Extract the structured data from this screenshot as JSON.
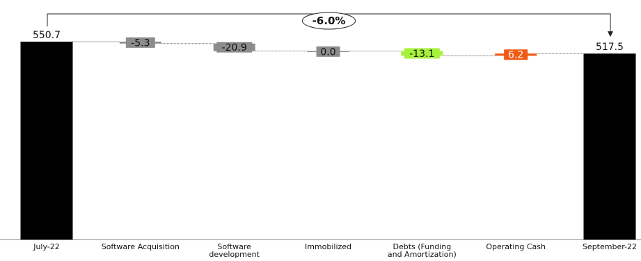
{
  "chart_data": {
    "type": "waterfall",
    "title": "",
    "xlabel": "",
    "ylabel": "",
    "categories": [
      "July-22",
      "Software Acquisition",
      "Software development",
      "Immobilized",
      "Debts (Funding and Amortization)",
      "Operating Cash",
      "September-22"
    ],
    "category_lines": [
      [
        "July-22"
      ],
      [
        "Software Acquisition"
      ],
      [
        "Software",
        "development"
      ],
      [
        "Immobilized"
      ],
      [
        "Debts (Funding",
        "and Amortization)"
      ],
      [
        "Operating Cash"
      ],
      [
        "September-22"
      ]
    ],
    "values": [
      550.7,
      -5.3,
      -20.9,
      0.0,
      -13.1,
      6.2,
      517.5
    ],
    "value_labels": [
      "550.7",
      "-5.3",
      "-20.9",
      "0.0",
      "-13.1",
      "6.2",
      "517.5"
    ],
    "kinds": [
      "total",
      "delta",
      "delta",
      "delta",
      "delta",
      "delta",
      "total"
    ],
    "change_annotation": "-6.0%",
    "ylim": [
      0,
      550.7
    ],
    "grid": false,
    "legend": "none"
  },
  "colors": {
    "total": "#000000",
    "neutral": "#8c8c8c",
    "increase_green": "#a6f23a",
    "decrease_orange": "#f05a14",
    "connector": "#555555",
    "axis": "#888888"
  },
  "bar_colors": [
    "total",
    "neutral",
    "neutral",
    "neutral",
    "increase_green",
    "decrease_orange",
    "total"
  ],
  "label_text_colors": [
    "#111111",
    "#111111",
    "#111111",
    "#111111",
    "#111111",
    "#ffffff",
    "#111111"
  ]
}
